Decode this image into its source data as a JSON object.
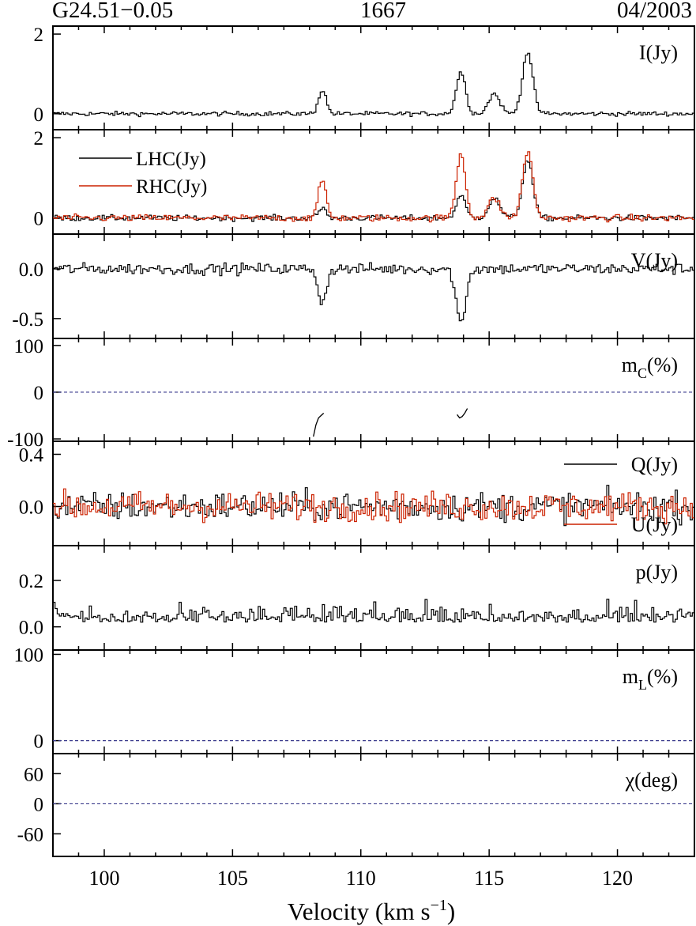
{
  "header": {
    "source": "G24.51−0.05",
    "frequency": "1667",
    "date": "04/2003"
  },
  "xaxis": {
    "label_main": "Velocity (km s",
    "label_sup": "−1",
    "label_close": ")",
    "range": [
      98,
      123
    ],
    "ticks": [
      100,
      105,
      110,
      115,
      120
    ],
    "tick_labels": [
      "100",
      "105",
      "110",
      "115",
      "120"
    ]
  },
  "colors": {
    "black": "#000000",
    "red": "#cc2200",
    "dash": "#3a3a8c"
  },
  "chart_data": [
    {
      "id": "I",
      "type": "line",
      "label": "I(Jy)",
      "ylim": [
        -0.4,
        2.2
      ],
      "yticks": [
        0,
        2
      ],
      "ytick_labels": [
        "0",
        "2"
      ],
      "series": [
        {
          "color": "black",
          "peaks": [
            [
              108.5,
              0.6,
              0.15
            ],
            [
              113.9,
              1.05,
              0.18
            ],
            [
              115.2,
              0.5,
              0.22
            ],
            [
              116.5,
              1.55,
              0.2
            ]
          ],
          "noise": 0.04,
          "baseline": 0.0
        }
      ]
    },
    {
      "id": "LR",
      "type": "line",
      "legend": [
        {
          "name": "LHC(Jy)",
          "color": "black"
        },
        {
          "name": "RHC(Jy)",
          "color": "red"
        }
      ],
      "ylim": [
        -0.4,
        2.2
      ],
      "yticks": [
        0,
        2
      ],
      "ytick_labels": [
        "0",
        "2"
      ],
      "series": [
        {
          "color": "black",
          "peaks": [
            [
              108.5,
              0.25,
              0.15
            ],
            [
              113.9,
              0.55,
              0.18
            ],
            [
              115.2,
              0.48,
              0.22
            ],
            [
              116.5,
              1.45,
              0.2
            ]
          ],
          "noise": 0.05,
          "baseline": 0.0
        },
        {
          "color": "red",
          "peaks": [
            [
              108.5,
              0.95,
              0.15
            ],
            [
              113.9,
              1.6,
              0.18
            ],
            [
              115.2,
              0.5,
              0.22
            ],
            [
              116.5,
              1.65,
              0.2
            ]
          ],
          "noise": 0.06,
          "baseline": 0.0
        }
      ]
    },
    {
      "id": "V",
      "type": "line",
      "label": "V(Jy)",
      "ylim": [
        -0.7,
        0.35
      ],
      "yticks": [
        0,
        -0.5
      ],
      "ytick_labels": [
        "0.0",
        "-0.5"
      ],
      "series": [
        {
          "color": "black",
          "peaks": [
            [
              108.5,
              -0.35,
              0.15
            ],
            [
              113.9,
              -0.55,
              0.18
            ]
          ],
          "noise": 0.04,
          "baseline": 0.0
        }
      ]
    },
    {
      "id": "mC",
      "type": "line",
      "label_main": "m",
      "label_sub": "C",
      "label_unit": "(%)",
      "ylim": [
        -105,
        115
      ],
      "yticks": [
        100,
        0,
        -100
      ],
      "ytick_labels": [
        "100",
        "0",
        "-100"
      ],
      "dashed_zero": true,
      "segments": [
        {
          "x": [
            108.15,
            108.25,
            108.35,
            108.45,
            108.55
          ],
          "y": [
            -95,
            -70,
            -55,
            -50,
            -45
          ]
        },
        {
          "x": [
            113.75,
            113.85,
            113.95,
            114.05,
            114.15
          ],
          "y": [
            -48,
            -55,
            -52,
            -45,
            -35
          ]
        }
      ]
    },
    {
      "id": "QU",
      "type": "line",
      "legend": [
        {
          "name": "Q(Jy)",
          "color": "black"
        },
        {
          "name": "U(Jy)",
          "color": "red"
        }
      ],
      "ylim": [
        -0.3,
        0.5
      ],
      "yticks": [
        0.4,
        0
      ],
      "ytick_labels": [
        "0.4",
        "0.0"
      ],
      "series": [
        {
          "color": "black",
          "peaks": [],
          "noise": 0.08,
          "baseline": 0.0
        },
        {
          "color": "red",
          "peaks": [],
          "noise": 0.08,
          "baseline": 0.0
        }
      ]
    },
    {
      "id": "p",
      "type": "line",
      "label": "p(Jy)",
      "ylim": [
        -0.1,
        0.35
      ],
      "yticks": [
        0.2,
        0
      ],
      "ytick_labels": [
        "0.2",
        "0.0"
      ],
      "series": [
        {
          "color": "black",
          "peaks": [],
          "noise": 0.05,
          "baseline": 0.02,
          "positive": true
        }
      ]
    },
    {
      "id": "mL",
      "type": "line",
      "label_main": "m",
      "label_sub": "L",
      "label_unit": "(%)",
      "ylim": [
        -15,
        105
      ],
      "yticks": [
        100,
        0
      ],
      "ytick_labels": [
        "100",
        "0"
      ],
      "dashed_zero": true
    },
    {
      "id": "chi",
      "type": "line",
      "label": "χ(deg)",
      "ylim": [
        -105,
        100
      ],
      "yticks": [
        60,
        0,
        -60
      ],
      "ytick_labels": [
        "60",
        "0",
        "-60"
      ],
      "dashed_zero": true
    }
  ]
}
